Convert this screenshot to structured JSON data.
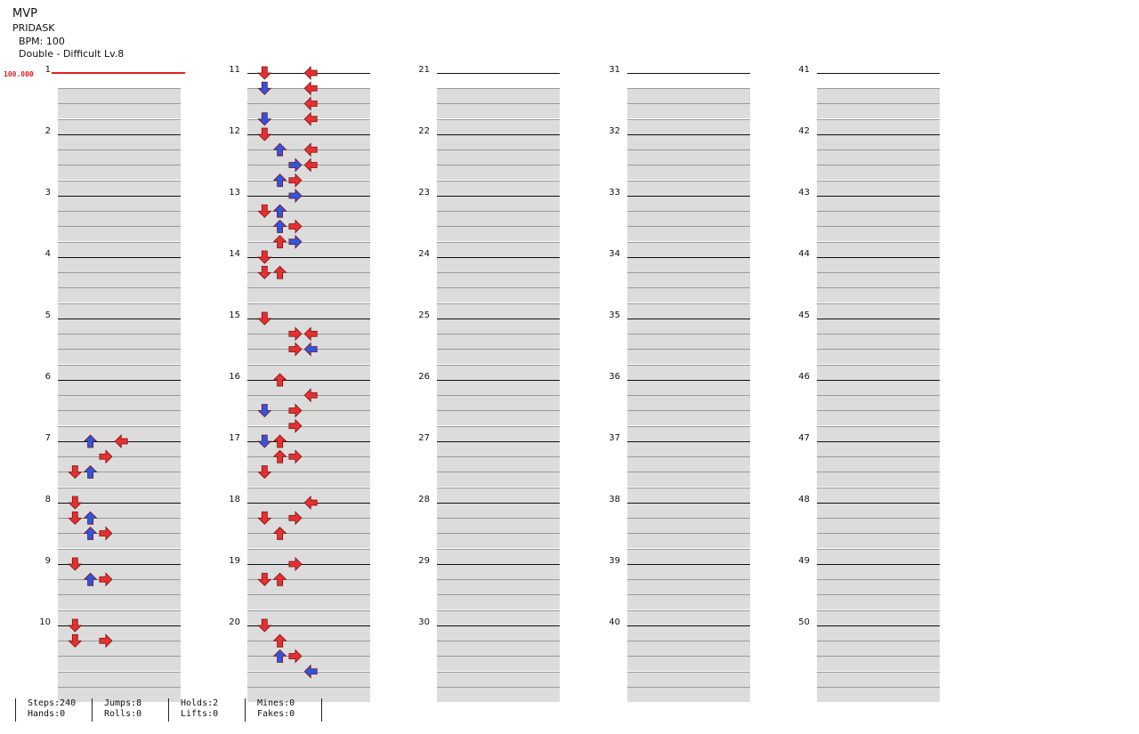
{
  "header": {
    "title": "MVP",
    "artist": "PRIDASK",
    "bpm": "BPM: 100",
    "difficulty": "Double - Difficult Lv.8"
  },
  "speed_label": "100.000",
  "measure_numbers": [
    "1",
    "2",
    "3",
    "4",
    "5",
    "6",
    "7",
    "8",
    "9",
    "10",
    "11",
    "12",
    "13",
    "14",
    "15",
    "16",
    "17",
    "18",
    "19",
    "20",
    "21",
    "22",
    "23",
    "24",
    "25",
    "26",
    "27",
    "28",
    "29",
    "30",
    "31",
    "32",
    "33",
    "34",
    "35",
    "36",
    "37",
    "38",
    "39",
    "40",
    "41",
    "42",
    "43",
    "44",
    "45",
    "46",
    "47",
    "48",
    "49",
    "50"
  ],
  "colors": {
    "quarter": "#e53030",
    "eighth": "#2f55e0",
    "sixteenth": "#f2e22a",
    "hold_body": "#8fd66a",
    "band": "#dcdcdc",
    "speed": "#e02020"
  },
  "notes": [
    [
      11,
      0,
      1,
      "R"
    ],
    [
      11,
      0,
      4,
      "D"
    ],
    [
      11,
      1,
      1,
      "B"
    ],
    [
      11,
      1,
      4,
      "R"
    ],
    [
      11,
      2,
      4,
      "R"
    ],
    [
      11,
      3,
      1,
      "B"
    ],
    [
      11,
      3,
      4,
      "R"
    ],
    [
      12,
      0,
      1,
      "R"
    ],
    [
      12,
      1,
      2,
      "B"
    ],
    [
      12,
      1,
      4,
      "R"
    ],
    [
      12,
      2,
      3,
      "B"
    ],
    [
      12,
      2,
      4,
      "R"
    ],
    [
      12,
      3,
      3,
      "R"
    ],
    [
      12,
      3,
      2,
      "B"
    ],
    [
      13,
      0,
      3,
      "B"
    ],
    [
      13,
      1,
      2,
      "R"
    ],
    [
      13,
      1,
      1,
      "R"
    ],
    [
      13,
      1,
      2,
      "B"
    ],
    [
      13,
      2,
      3,
      "R"
    ],
    [
      13,
      2,
      2,
      "B"
    ],
    [
      13,
      3,
      2,
      "R"
    ],
    [
      13,
      3,
      3,
      "B"
    ],
    [
      14,
      0,
      1,
      "R"
    ],
    [
      14,
      1,
      1,
      "R"
    ],
    [
      14,
      1,
      2,
      "R"
    ],
    [
      15,
      0,
      1,
      "R"
    ],
    [
      15,
      1,
      4,
      "R"
    ],
    [
      15,
      1,
      3,
      "R"
    ],
    [
      15,
      2,
      4,
      "B"
    ],
    [
      15,
      2,
      3,
      "R"
    ],
    [
      16,
      0,
      2,
      "R"
    ],
    [
      16,
      1,
      4,
      "R"
    ],
    [
      16,
      2,
      3,
      "R"
    ],
    [
      16,
      2,
      1,
      "B"
    ],
    [
      16,
      3,
      3,
      "R"
    ],
    [
      17,
      0,
      2,
      "R"
    ],
    [
      17,
      0,
      1,
      "B"
    ],
    [
      17,
      1,
      2,
      "R"
    ],
    [
      17,
      1,
      3,
      "R"
    ],
    [
      17,
      2,
      1,
      "R"
    ],
    [
      18,
      0,
      4,
      "R"
    ],
    [
      18,
      1,
      1,
      "R"
    ],
    [
      18,
      1,
      3,
      "R"
    ],
    [
      18,
      2,
      2,
      "R"
    ],
    [
      19,
      0,
      3,
      "R"
    ],
    [
      19,
      1,
      2,
      "R"
    ],
    [
      19,
      1,
      1,
      "R"
    ],
    [
      20,
      0,
      1,
      "R"
    ],
    [
      20,
      1,
      2,
      "R"
    ],
    [
      20,
      2,
      3,
      "R"
    ],
    [
      20,
      2,
      2,
      "B"
    ],
    [
      20,
      3,
      4,
      "B"
    ],
    [
      7,
      0,
      4,
      "R"
    ],
    [
      7,
      0,
      2,
      "B"
    ],
    [
      7,
      1,
      3,
      "R"
    ],
    [
      7,
      2,
      1,
      "R"
    ],
    [
      7,
      2,
      2,
      "B"
    ],
    [
      8,
      0,
      1,
      "R"
    ],
    [
      8,
      1,
      2,
      "B"
    ],
    [
      8,
      1,
      1,
      "R"
    ],
    [
      8,
      2,
      3,
      "R"
    ],
    [
      8,
      2,
      2,
      "B"
    ],
    [
      9,
      0,
      1,
      "R"
    ],
    [
      9,
      1,
      3,
      "R"
    ],
    [
      9,
      1,
      2,
      "B"
    ],
    [
      10,
      0,
      1,
      "R"
    ],
    [
      10,
      1,
      3,
      "R"
    ],
    [
      10,
      1,
      1,
      "R"
    ]
  ],
  "stats": {
    "steps": "Steps:240",
    "hands": "Hands:0",
    "jumps": "Jumps:8",
    "rolls": "Rolls:0",
    "holds": "Holds:2",
    "lifts": "Lifts:0",
    "mines": "Mines:0",
    "fakes": "Fakes:0"
  }
}
